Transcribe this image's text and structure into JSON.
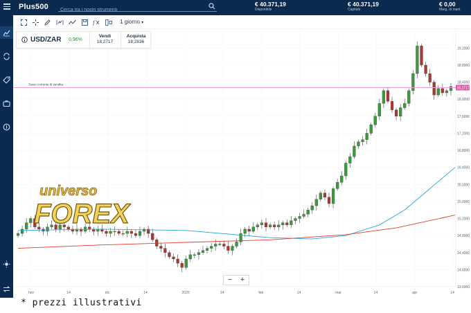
{
  "topbar": {
    "logo": "Plus500",
    "search_placeholder": "Cerca tra i nostri strumenti",
    "stats": [
      {
        "value": "€ 40.371,19",
        "label": "Disponibile"
      },
      {
        "value": "€ 40.371,19",
        "label": "Capitale"
      },
      {
        "value": "€ 0,00",
        "label": "Marg. di mant."
      }
    ]
  },
  "toolbar": {
    "timeframe": "1 giorno"
  },
  "instrument": {
    "name": "USD/ZAR",
    "change": "0,96%",
    "sell_label": "Vendi",
    "sell_value": "18,2717",
    "buy_label": "Acquista",
    "buy_value": "18,2836"
  },
  "chart_data": {
    "type": "candlestick",
    "current_price_label": "Tasso corrente di vendita",
    "current_price": 18.2717,
    "current_price_tag": "18,2717",
    "ylim": [
      13.6,
      19.45
    ],
    "yticks": [
      19.2,
      18.8,
      18.4,
      18.0,
      17.6,
      17.2,
      16.8,
      16.4,
      16.0,
      15.6,
      15.2,
      14.8,
      14.4,
      14.0,
      13.6
    ],
    "ytick_labels": [
      "19,2000",
      "18,8000",
      "18,4000",
      "18,0000",
      "17,6000",
      "17,2000",
      "16,8000",
      "16,4000",
      "16,0000",
      "15,6000",
      "15,2000",
      "14,8000",
      "14,4000",
      "14,0000",
      "13,6000"
    ],
    "xtick_labels": [
      "nov",
      "14",
      "dic",
      "14",
      "2020",
      "14",
      "feb",
      "14",
      "mar",
      "14",
      "apr",
      "14"
    ],
    "closes": [
      14.85,
      14.95,
      15.1,
      15.2,
      15.0,
      14.95,
      14.9,
      15.0,
      15.05,
      14.95,
      15.05,
      15.0,
      14.95,
      14.9,
      14.95,
      14.9,
      15.0,
      14.95,
      14.9,
      14.95,
      14.9,
      14.85,
      14.9,
      14.9,
      14.85,
      14.85,
      14.9,
      14.85,
      14.8,
      14.9,
      14.95,
      14.85,
      14.7,
      14.55,
      14.5,
      14.4,
      14.3,
      14.25,
      14.15,
      14.05,
      14.25,
      14.35,
      14.35,
      14.4,
      14.45,
      14.5,
      14.55,
      14.6,
      14.6,
      14.55,
      14.45,
      14.55,
      14.65,
      14.85,
      14.95,
      14.9,
      15.0,
      15.05,
      15.1,
      15.0,
      15.05,
      15.0,
      15.05,
      15.1,
      15.05,
      15.15,
      15.2,
      15.25,
      15.3,
      15.4,
      15.5,
      15.65,
      15.8,
      15.7,
      15.55,
      15.9,
      16.05,
      16.2,
      16.5,
      16.65,
      16.9,
      17.0,
      17.05,
      17.2,
      17.4,
      17.6,
      17.9,
      18.2,
      17.95,
      17.75,
      17.6,
      17.8,
      17.9,
      18.2,
      18.6,
      19.25,
      18.8,
      18.6,
      18.4,
      18.1,
      18.25,
      18.15,
      18.2,
      18.3
    ],
    "ma_blue": [
      [
        0,
        14.92
      ],
      [
        20,
        14.95
      ],
      [
        40,
        14.92
      ],
      [
        60,
        14.75
      ],
      [
        70,
        14.72
      ],
      [
        78,
        14.8
      ],
      [
        86,
        15.05
      ],
      [
        92,
        15.4
      ],
      [
        98,
        15.9
      ],
      [
        104,
        16.4
      ]
    ],
    "ma_red": [
      [
        0,
        14.5
      ],
      [
        20,
        14.58
      ],
      [
        40,
        14.64
      ],
      [
        60,
        14.7
      ],
      [
        78,
        14.82
      ],
      [
        90,
        14.98
      ],
      [
        104,
        15.28
      ]
    ]
  },
  "watermark": {
    "line1": "universo",
    "line2": "FOREX"
  },
  "zoom": {
    "minus": "−",
    "plus": "+"
  },
  "disclaimer": "* prezzi illustrativi",
  "colors": {
    "navy": "#0b2a4f",
    "up": "#3c9a3c",
    "down": "#b8332a",
    "ma_blue": "#2aa5d8",
    "ma_red": "#e03a2f",
    "current_line": "#e8a2d6"
  }
}
